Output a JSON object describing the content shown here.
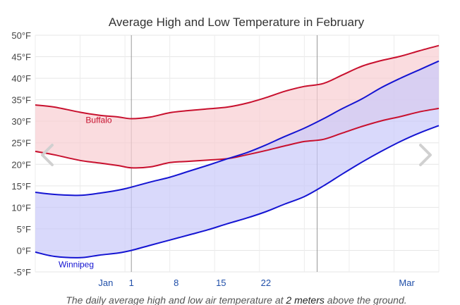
{
  "chart_data": {
    "type": "area",
    "title": "Average High and Low Temperature in February",
    "ylim": [
      -5,
      50
    ],
    "yticks": [
      -5,
      0,
      5,
      10,
      15,
      20,
      25,
      30,
      35,
      40,
      45,
      50
    ],
    "ytick_labels": [
      "-5°F",
      "0°F",
      "5°F",
      "10°F",
      "15°F",
      "20°F",
      "25°F",
      "30°F",
      "35°F",
      "40°F",
      "45°F",
      "50°F"
    ],
    "xlim": [
      "2024-01-17",
      "2024-03-20"
    ],
    "xticks": [
      {
        "date": "2024-01-28",
        "label": "Jan"
      },
      {
        "date": "2024-02-01",
        "label": "1"
      },
      {
        "date": "2024-02-08",
        "label": "8"
      },
      {
        "date": "2024-02-15",
        "label": "15"
      },
      {
        "date": "2024-02-22",
        "label": "22"
      },
      {
        "date": "2024-03-15",
        "label": "Mar"
      }
    ],
    "month_boundaries": [
      "2024-02-01",
      "2024-03-01"
    ],
    "grid": true,
    "caption_parts": [
      "The daily average high and low air temperature at ",
      "2 meters",
      " above the ground."
    ],
    "series": [
      {
        "name": "Buffalo",
        "color": "#c8102e",
        "fill": "#f8cdd1",
        "x": [
          "2024-01-17",
          "2024-01-20",
          "2024-01-24",
          "2024-01-27",
          "2024-01-30",
          "2024-02-01",
          "2024-02-04",
          "2024-02-07",
          "2024-02-10",
          "2024-02-13",
          "2024-02-16",
          "2024-02-19",
          "2024-02-22",
          "2024-02-25",
          "2024-02-28",
          "2024-03-02",
          "2024-03-05",
          "2024-03-08",
          "2024-03-11",
          "2024-03-14",
          "2024-03-17",
          "2024-03-20"
        ],
        "high": [
          33.8,
          33.3,
          32.1,
          31.4,
          31.0,
          30.6,
          31.0,
          32.0,
          32.5,
          32.9,
          33.3,
          34.2,
          35.5,
          37.0,
          38.1,
          38.8,
          40.8,
          42.8,
          44.1,
          45.1,
          46.4,
          47.6
        ],
        "low": [
          23.0,
          22.2,
          20.9,
          20.3,
          19.7,
          19.2,
          19.4,
          20.4,
          20.7,
          21.0,
          21.3,
          22.2,
          23.2,
          24.3,
          25.3,
          25.8,
          27.3,
          28.8,
          30.1,
          31.1,
          32.2,
          33.0
        ]
      },
      {
        "name": "Winnipeg",
        "color": "#1414d2",
        "fill": "#c9c9fa",
        "x": [
          "2024-01-17",
          "2024-01-20",
          "2024-01-24",
          "2024-01-27",
          "2024-01-30",
          "2024-02-01",
          "2024-02-04",
          "2024-02-07",
          "2024-02-10",
          "2024-02-13",
          "2024-02-16",
          "2024-02-19",
          "2024-02-22",
          "2024-02-25",
          "2024-02-28",
          "2024-03-02",
          "2024-03-05",
          "2024-03-08",
          "2024-03-11",
          "2024-03-14",
          "2024-03-17",
          "2024-03-20"
        ],
        "high": [
          13.5,
          13.0,
          12.8,
          13.3,
          14.0,
          14.7,
          15.9,
          17.0,
          18.4,
          19.8,
          21.3,
          22.7,
          24.5,
          26.5,
          28.4,
          30.6,
          33.0,
          35.2,
          37.8,
          40.0,
          42.0,
          44.0
        ],
        "low": [
          -0.4,
          -1.4,
          -1.7,
          -1.1,
          -0.6,
          0.0,
          1.2,
          2.4,
          3.6,
          4.8,
          6.2,
          7.5,
          9.0,
          10.8,
          12.5,
          15.0,
          17.8,
          20.5,
          23.0,
          25.3,
          27.3,
          29.0
        ]
      }
    ]
  },
  "navigation": {
    "prev_icon": "chevron-left-icon",
    "next_icon": "chevron-right-icon"
  }
}
